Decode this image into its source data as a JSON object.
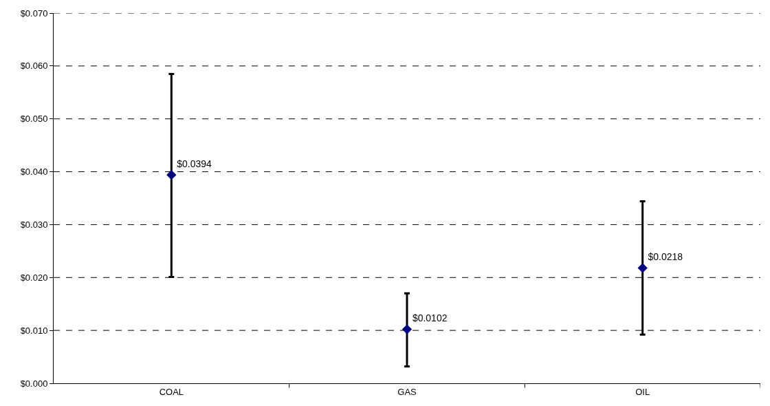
{
  "chart_data": {
    "type": "scatter",
    "categories": [
      "COAL",
      "GAS",
      "OIL"
    ],
    "values": [
      0.0394,
      0.0102,
      0.0218
    ],
    "errors": [
      [
        0.0201,
        0.0585
      ],
      [
        0.0032,
        0.017
      ],
      [
        0.0092,
        0.0344
      ]
    ],
    "value_labels": [
      "$0.0394",
      "$0.0102",
      "$0.0218"
    ],
    "color": "#000080",
    "marker": "diamond",
    "ylim": [
      0,
      0.07
    ],
    "yticks": [
      {
        "value": 0,
        "label": "$0.000"
      },
      {
        "value": 0.01,
        "label": "$0.010"
      },
      {
        "value": 0.02,
        "label": "$0.020"
      },
      {
        "value": 0.03,
        "label": "$0.030"
      },
      {
        "value": 0.04,
        "label": "$0.040"
      },
      {
        "value": 0.05,
        "label": "$0.050"
      },
      {
        "value": 0.06,
        "label": "$0.060"
      },
      {
        "value": 0.07,
        "label": "$0.070"
      }
    ],
    "grid": "y"
  }
}
